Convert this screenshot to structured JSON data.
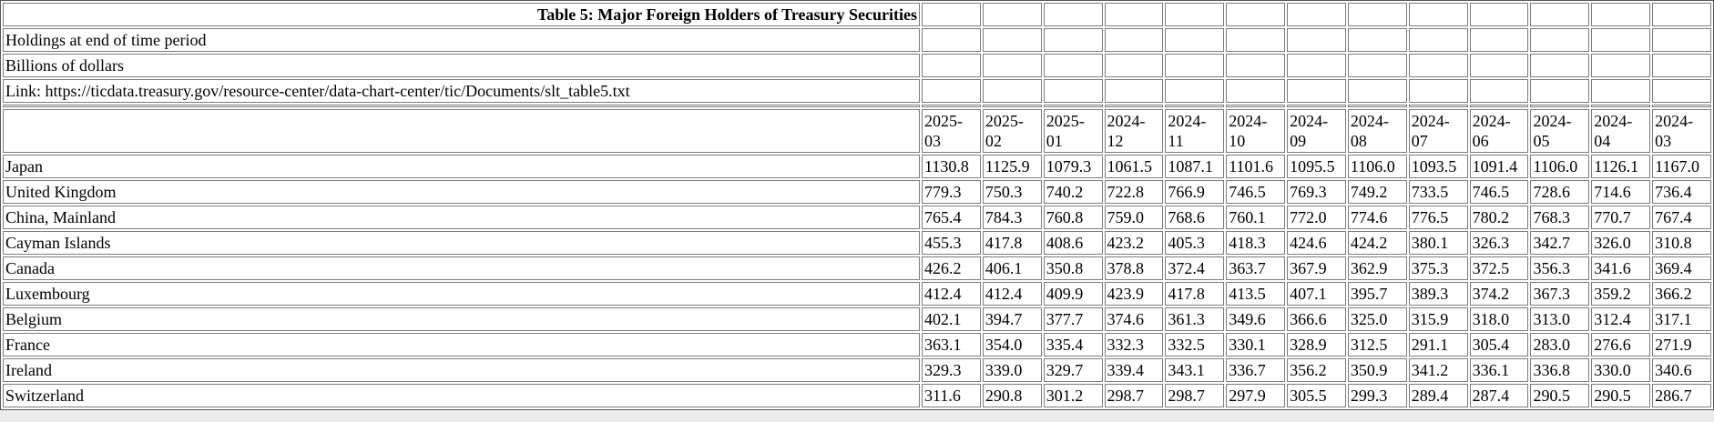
{
  "header": {
    "title": "Table 5: Major Foreign Holders of Treasury Securities",
    "holdings_note": "Holdings at end of time period",
    "units_note": "Billions of dollars",
    "link_note": "Link: https://ticdata.treasury.gov/resource-center/data-chart-center/tic/Documents/slt_table5.txt"
  },
  "chart_data": {
    "type": "table",
    "columns": [
      "2025-03",
      "2025-02",
      "2025-01",
      "2024-12",
      "2024-11",
      "2024-10",
      "2024-09",
      "2024-08",
      "2024-07",
      "2024-06",
      "2024-05",
      "2024-04",
      "2024-03"
    ],
    "rows": [
      {
        "label": "Japan",
        "values": [
          1130.8,
          1125.9,
          1079.3,
          1061.5,
          1087.1,
          1101.6,
          1095.5,
          1106.0,
          1093.5,
          1091.4,
          1106.0,
          1126.1,
          1167.0
        ]
      },
      {
        "label": "United Kingdom",
        "values": [
          779.3,
          750.3,
          740.2,
          722.8,
          766.9,
          746.5,
          769.3,
          749.2,
          733.5,
          746.5,
          728.6,
          714.6,
          736.4
        ]
      },
      {
        "label": "China, Mainland",
        "values": [
          765.4,
          784.3,
          760.8,
          759.0,
          768.6,
          760.1,
          772.0,
          774.6,
          776.5,
          780.2,
          768.3,
          770.7,
          767.4
        ]
      },
      {
        "label": "Cayman Islands",
        "values": [
          455.3,
          417.8,
          408.6,
          423.2,
          405.3,
          418.3,
          424.6,
          424.2,
          380.1,
          326.3,
          342.7,
          326.0,
          310.8
        ]
      },
      {
        "label": "Canada",
        "values": [
          426.2,
          406.1,
          350.8,
          378.8,
          372.4,
          363.7,
          367.9,
          362.9,
          375.3,
          372.5,
          356.3,
          341.6,
          369.4
        ]
      },
      {
        "label": "Luxembourg",
        "values": [
          412.4,
          412.4,
          409.9,
          423.9,
          417.8,
          413.5,
          407.1,
          395.7,
          389.3,
          374.2,
          367.3,
          359.2,
          366.2
        ]
      },
      {
        "label": "Belgium",
        "values": [
          402.1,
          394.7,
          377.7,
          374.6,
          361.3,
          349.6,
          366.6,
          325.0,
          315.9,
          318.0,
          313.0,
          312.4,
          317.1
        ]
      },
      {
        "label": "France",
        "values": [
          363.1,
          354.0,
          335.4,
          332.3,
          332.5,
          330.1,
          328.9,
          312.5,
          291.1,
          305.4,
          283.0,
          276.6,
          271.9
        ]
      },
      {
        "label": "Ireland",
        "values": [
          329.3,
          339.0,
          329.7,
          339.4,
          343.1,
          336.7,
          356.2,
          350.9,
          341.2,
          336.1,
          336.8,
          330.0,
          340.6
        ]
      },
      {
        "label": "Switzerland",
        "values": [
          311.6,
          290.8,
          301.2,
          298.7,
          298.7,
          297.9,
          305.5,
          299.3,
          289.4,
          287.4,
          290.5,
          290.5,
          286.7
        ]
      }
    ]
  },
  "colors": {
    "table_outer_border": "#595959",
    "cell_border": "#7d7d7d",
    "table_background": "#ffffff",
    "page_strip_background": "#ececec",
    "text": "#000000"
  }
}
